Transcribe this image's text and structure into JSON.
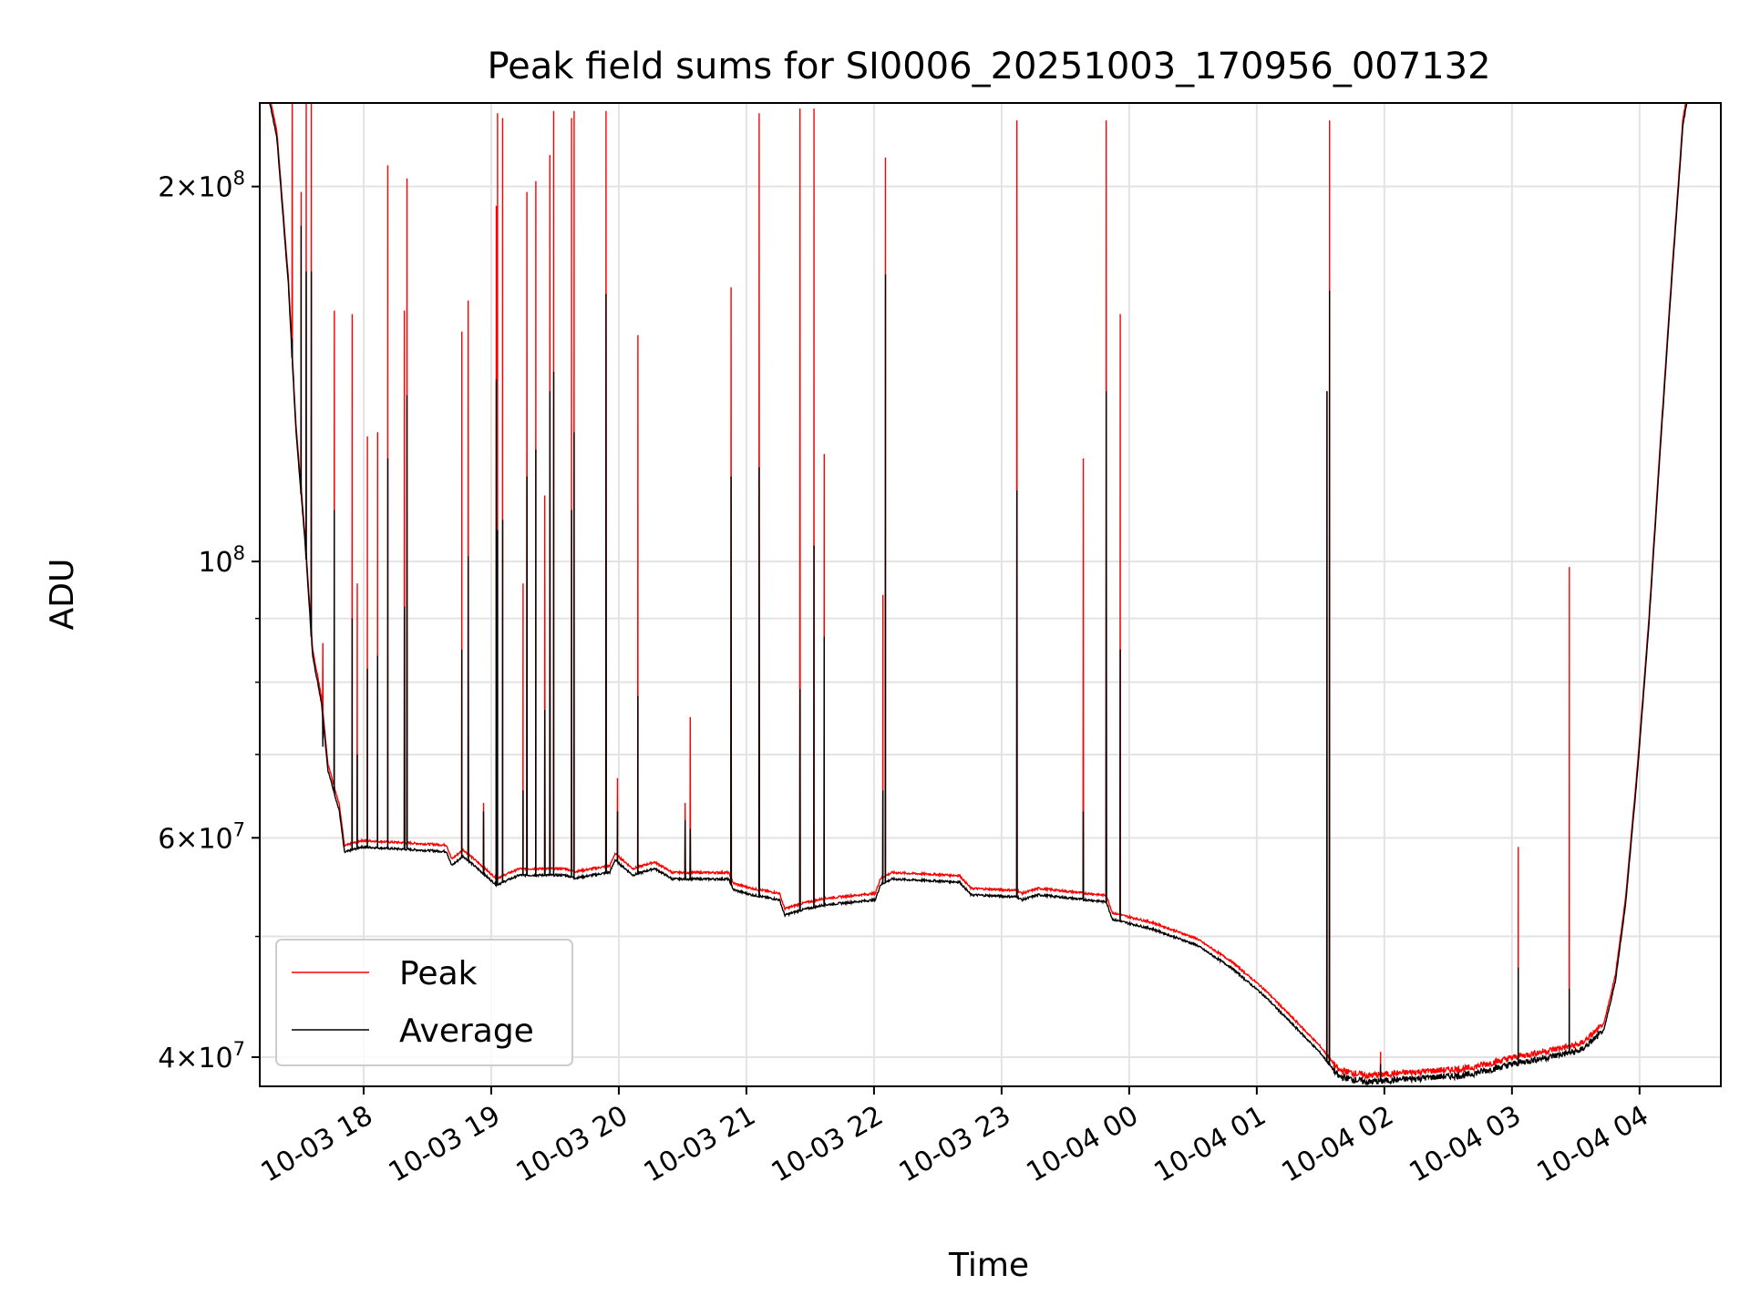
{
  "chart_data": {
    "type": "line",
    "title": "Peak field sums for SI0006_20251003_170956_007132",
    "xlabel": "Time",
    "ylabel": "ADU",
    "x_units": "hours since 10-03 00:00",
    "xlim": [
      17.186,
      28.637
    ],
    "ylim": [
      37900000,
      233400000
    ],
    "yscale": "log",
    "grid": true,
    "legend_placement": "lower-left",
    "x_ticks": [
      {
        "value": 18,
        "label": "10-03 18"
      },
      {
        "value": 19,
        "label": "10-03 19"
      },
      {
        "value": 20,
        "label": "10-03 20"
      },
      {
        "value": 21,
        "label": "10-03 21"
      },
      {
        "value": 22,
        "label": "10-03 22"
      },
      {
        "value": 23,
        "label": "10-03 23"
      },
      {
        "value": 24,
        "label": "10-04 00"
      },
      {
        "value": 25,
        "label": "10-04 01"
      },
      {
        "value": 26,
        "label": "10-04 02"
      },
      {
        "value": 27,
        "label": "10-04 03"
      },
      {
        "value": 28,
        "label": "10-04 04"
      }
    ],
    "y_ticks": [
      {
        "value": 200000000,
        "mant": "2",
        "exp": "8"
      },
      {
        "value": 100000000,
        "mant": "",
        "exp": "8"
      },
      {
        "value": 60000000,
        "mant": "6",
        "exp": "7"
      },
      {
        "value": 40000000,
        "mant": "4",
        "exp": "7"
      }
    ],
    "y_minor_grid": [
      50000000,
      70000000,
      80000000,
      90000000
    ],
    "series": [
      {
        "name": "Peak",
        "color": "#ff0000",
        "ratio_to_average": 1.012
      },
      {
        "name": "Average",
        "color": "#000000"
      }
    ],
    "average_baseline": [
      [
        17.17,
        260000000
      ],
      [
        17.32,
        219000000
      ],
      [
        17.41,
        167000000
      ],
      [
        17.47,
        127000000
      ],
      [
        17.54,
        104000000
      ],
      [
        17.6,
        84000000
      ],
      [
        17.67,
        77000000
      ],
      [
        17.72,
        68000000
      ],
      [
        17.81,
        63000000
      ],
      [
        17.85,
        58400000
      ],
      [
        17.98,
        59000000
      ],
      [
        18.65,
        58500000
      ],
      [
        18.69,
        57000000
      ],
      [
        18.78,
        58000000
      ],
      [
        19.04,
        55000000
      ],
      [
        19.22,
        56000000
      ],
      [
        19.58,
        56000000
      ],
      [
        19.66,
        55700000
      ],
      [
        19.93,
        56300000
      ],
      [
        19.97,
        57600000
      ],
      [
        20.11,
        56000000
      ],
      [
        20.28,
        56700000
      ],
      [
        20.42,
        55600000
      ],
      [
        20.86,
        55600000
      ],
      [
        20.9,
        54500000
      ],
      [
        21.04,
        54000000
      ],
      [
        21.26,
        53500000
      ],
      [
        21.3,
        52000000
      ],
      [
        21.43,
        52500000
      ],
      [
        21.61,
        53000000
      ],
      [
        22.01,
        53500000
      ],
      [
        22.05,
        55000000
      ],
      [
        22.14,
        55600000
      ],
      [
        22.67,
        55300000
      ],
      [
        22.76,
        54000000
      ],
      [
        23.12,
        53800000
      ],
      [
        23.16,
        53500000
      ],
      [
        23.29,
        54000000
      ],
      [
        23.82,
        53300000
      ],
      [
        23.87,
        51600000
      ],
      [
        24.18,
        50700000
      ],
      [
        24.53,
        49200000
      ],
      [
        24.8,
        47200000
      ],
      [
        25.06,
        44800000
      ],
      [
        25.33,
        42000000
      ],
      [
        25.5,
        40300000
      ],
      [
        25.64,
        38600000
      ],
      [
        25.86,
        38200000
      ],
      [
        26.3,
        38500000
      ],
      [
        26.65,
        38700000
      ],
      [
        27.01,
        39500000
      ],
      [
        27.54,
        40500000
      ],
      [
        27.72,
        42000000
      ],
      [
        27.81,
        46000000
      ],
      [
        27.89,
        53000000
      ],
      [
        27.98,
        67000000
      ],
      [
        28.07,
        88000000
      ],
      [
        28.16,
        122000000
      ],
      [
        28.25,
        167000000
      ],
      [
        28.34,
        224000000
      ],
      [
        28.45,
        260000000
      ]
    ],
    "spikes_time_peak_average": [
      [
        17.44,
        240000000,
        151000000
      ],
      [
        17.51,
        198000000,
        186000000
      ],
      [
        17.55,
        240000000,
        171000000
      ],
      [
        17.59,
        240000000,
        171000000
      ],
      [
        17.68,
        86000000,
        71000000
      ],
      [
        17.77,
        159000000,
        110000000
      ],
      [
        17.91,
        158000000,
        90000000
      ],
      [
        17.95,
        96000000,
        70000000
      ],
      [
        18.03,
        126000000,
        82000000
      ],
      [
        18.11,
        127000000,
        84000000
      ],
      [
        18.19,
        208000000,
        121000000
      ],
      [
        18.32,
        159000000,
        92000000
      ],
      [
        18.34,
        203000000,
        136000000
      ],
      [
        18.77,
        153000000,
        85000000
      ],
      [
        18.82,
        162000000,
        101000000
      ],
      [
        18.94,
        64000000,
        63000000
      ],
      [
        19.04,
        193000000,
        140000000
      ],
      [
        19.05,
        229000000,
        106000000
      ],
      [
        19.09,
        227000000,
        108000000
      ],
      [
        19.25,
        96000000,
        65500000
      ],
      [
        19.28,
        198000000,
        117000000
      ],
      [
        19.35,
        202000000,
        123000000
      ],
      [
        19.42,
        113000000,
        76000000
      ],
      [
        19.46,
        212000000,
        137000000
      ],
      [
        19.49,
        230000000,
        142000000
      ],
      [
        19.63,
        227000000,
        110000000
      ],
      [
        19.65,
        230000000,
        127000000
      ],
      [
        19.9,
        230000000,
        164000000
      ],
      [
        19.99,
        67000000,
        63000000
      ],
      [
        20.15,
        152000000,
        78000000
      ],
      [
        20.52,
        64000000,
        62000000
      ],
      [
        20.56,
        75000000,
        61000000
      ],
      [
        20.88,
        166000000,
        117000000
      ],
      [
        21.1,
        229000000,
        119000000
      ],
      [
        21.42,
        231000000,
        79000000
      ],
      [
        21.53,
        231000000,
        103000000
      ],
      [
        21.61,
        122000000,
        87000000
      ],
      [
        22.07,
        94000000,
        65500000
      ],
      [
        22.09,
        211000000,
        170000000
      ],
      [
        23.12,
        226000000,
        114000000
      ],
      [
        23.64,
        121000000,
        63000000
      ],
      [
        23.82,
        226000000,
        137000000
      ],
      [
        23.93,
        158000000,
        85000000
      ],
      [
        25.55,
        137000000,
        137000000
      ],
      [
        25.57,
        226000000,
        165000000
      ],
      [
        25.97,
        40400000,
        39500000
      ],
      [
        27.05,
        59000000,
        47200000
      ],
      [
        27.45,
        99000000,
        45400000
      ]
    ]
  }
}
